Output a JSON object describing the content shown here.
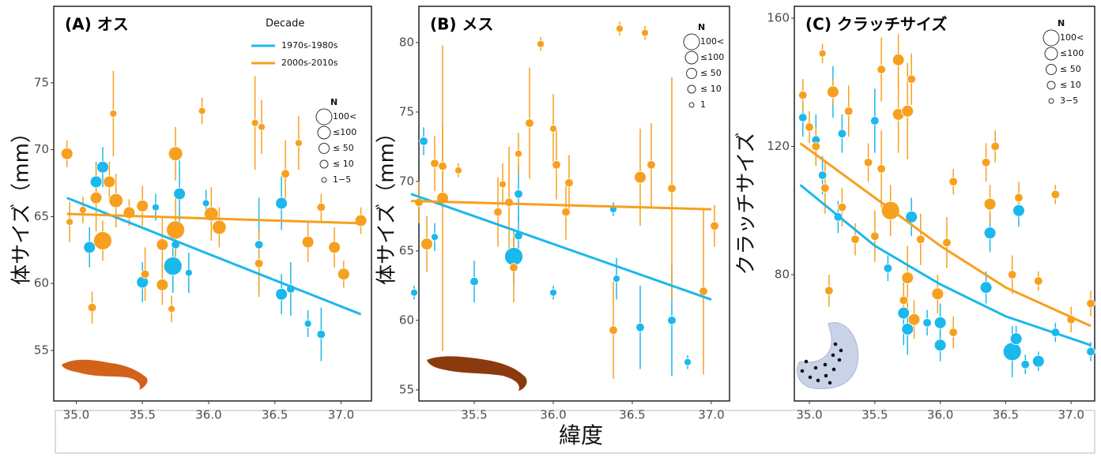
{
  "xlabel": "緯度",
  "chart_data": [
    {
      "type": "scatter",
      "title": "(A) オス",
      "ylabel": "体サイズ（mm）",
      "xlim": [
        34.83,
        37.23
      ],
      "ylim": [
        51.22,
        80.72
      ],
      "xticks": [
        {
          "value": 35,
          "label": "35.0"
        },
        35.5,
        {
          "value": 36,
          "label": "36.0"
        },
        36.5,
        {
          "value": 37,
          "label": "37.0"
        }
      ],
      "yticks": [
        55,
        60,
        65,
        70,
        75
      ],
      "legend": {
        "title": "Decade"
      },
      "size_legend": {
        "title": "N",
        "labels": [
          "100<",
          "≤100",
          "≤ 50",
          "≤ 10",
          "1−5"
        ]
      },
      "series": [
        {
          "name": "1970s-1980s",
          "color": "#1bb8ec",
          "x": [
            35.1,
            35.15,
            35.2,
            35.5,
            35.6,
            35.73,
            35.75,
            35.78,
            35.85,
            35.98,
            36.38,
            36.55,
            36.55,
            36.62,
            36.75,
            36.85
          ],
          "values": [
            62.7,
            67.6,
            68.7,
            60.1,
            65.7,
            61.3,
            62.9,
            66.7,
            60.8,
            66.0,
            62.9,
            66.0,
            59.2,
            59.6,
            57.0,
            56.2
          ],
          "errors": [
            1.5,
            1.5,
            1.5,
            1.5,
            1.0,
            2.0,
            2.0,
            2.5,
            1.5,
            1.0,
            3.5,
            2.0,
            1.5,
            2.0,
            1.0,
            2.0
          ],
          "n": [
            30,
            30,
            30,
            30,
            5,
            100,
            10,
            30,
            5,
            5,
            10,
            30,
            30,
            10,
            5,
            10
          ],
          "trend": {
            "x": [
              34.93,
              37.15
            ],
            "values": [
              66.4,
              57.7
            ]
          }
        },
        {
          "name": "2000s-2010s",
          "color": "#f7a01f",
          "x": [
            34.93,
            34.95,
            35.05,
            35.12,
            35.15,
            35.2,
            35.25,
            35.28,
            35.3,
            35.4,
            35.5,
            35.52,
            35.65,
            35.65,
            35.72,
            35.75,
            35.75,
            35.95,
            36.02,
            36.08,
            36.35,
            36.4,
            36.38,
            36.58,
            36.68,
            36.75,
            36.85,
            36.95,
            37.02,
            37.15
          ],
          "values": [
            69.7,
            64.6,
            65.5,
            58.2,
            66.4,
            63.2,
            67.6,
            72.7,
            66.2,
            65.3,
            65.8,
            60.7,
            62.9,
            59.9,
            58.1,
            69.7,
            64.0,
            72.9,
            65.2,
            64.2,
            72.0,
            71.7,
            61.5,
            68.2,
            70.5,
            63.1,
            65.7,
            62.7,
            60.7,
            64.7
          ],
          "errors": [
            1.0,
            1.5,
            1.0,
            1.2,
            2.5,
            1.5,
            1.5,
            3.2,
            2.0,
            1.0,
            1.5,
            2.0,
            2.0,
            1.5,
            1.0,
            2.0,
            2.5,
            1.0,
            2.0,
            1.5,
            3.5,
            2.0,
            2.5,
            2.5,
            2.0,
            1.5,
            1.0,
            1.5,
            1.0,
            1.0
          ],
          "n": [
            30,
            5,
            5,
            10,
            30,
            100,
            30,
            5,
            50,
            30,
            30,
            10,
            30,
            30,
            5,
            50,
            100,
            5,
            50,
            50,
            5,
            5,
            10,
            10,
            5,
            30,
            10,
            30,
            30,
            30
          ],
          "trend": {
            "x": [
              34.93,
              37.15
            ],
            "values": [
              65.2,
              64.5
            ]
          }
        }
      ]
    },
    {
      "type": "scatter",
      "title": "(B) メス",
      "ylabel": "体サイズ（mm）",
      "xlim": [
        35.15,
        37.115
      ],
      "ylim": [
        54.2,
        82.61
      ],
      "xticks": [
        35.5,
        {
          "value": 36,
          "label": "36.0"
        },
        36.5,
        {
          "value": 37,
          "label": "37.0"
        }
      ],
      "yticks": [
        55,
        60,
        65,
        70,
        75,
        80
      ],
      "size_legend": {
        "title": "N",
        "labels": [
          "100<",
          "≤100",
          "≤ 50",
          "≤ 10",
          "1"
        ]
      },
      "series": [
        {
          "color": "#1bb8ec",
          "x": [
            35.12,
            35.18,
            35.25,
            35.5,
            35.75,
            35.78,
            35.78,
            36.0,
            36.38,
            36.4,
            36.55,
            36.75,
            36.85
          ],
          "values": [
            62.0,
            72.9,
            66.0,
            62.8,
            64.6,
            69.1,
            66.1,
            62.0,
            68.0,
            63.0,
            59.5,
            60.0,
            57.0
          ],
          "errors": [
            0.5,
            1.0,
            1.0,
            1.5,
            2.0,
            2.0,
            1.5,
            0.5,
            0.5,
            1.5,
            3.0,
            4.0,
            0.5
          ],
          "n": [
            5,
            10,
            5,
            10,
            100,
            10,
            10,
            5,
            5,
            5,
            10,
            10,
            5
          ],
          "trend": {
            "x": [
              35.1,
              37.0
            ],
            "values": [
              69.1,
              61.5
            ]
          }
        },
        {
          "color": "#f7a01f",
          "x": [
            35.15,
            35.2,
            35.25,
            35.3,
            35.3,
            35.4,
            35.65,
            35.68,
            35.72,
            35.75,
            35.78,
            35.85,
            35.92,
            36.0,
            36.02,
            36.08,
            36.1,
            36.38,
            36.42,
            36.55,
            36.58,
            36.62,
            36.75,
            36.95,
            37.02
          ],
          "values": [
            68.5,
            65.5,
            71.3,
            68.8,
            71.1,
            70.8,
            67.8,
            69.8,
            68.5,
            63.8,
            72.0,
            74.2,
            79.9,
            73.8,
            71.2,
            67.8,
            69.9,
            59.3,
            81.0,
            70.3,
            80.7,
            71.2,
            69.5,
            62.1,
            66.8
          ],
          "errors": [
            1.5,
            2.0,
            2.0,
            11,
            3,
            0.5,
            2.5,
            1.5,
            4.0,
            2.5,
            1.5,
            4.0,
            0.5,
            2.5,
            2.5,
            2.0,
            2.0,
            3.5,
            0.5,
            3.5,
            0.5,
            3.0,
            8.0,
            6.0,
            1.5
          ],
          "n": [
            10,
            30,
            10,
            30,
            10,
            5,
            10,
            5,
            10,
            10,
            5,
            10,
            5,
            5,
            10,
            10,
            10,
            10,
            5,
            30,
            5,
            10,
            10,
            10,
            10
          ],
          "trend": {
            "x": [
              35.1,
              37.0
            ],
            "values": [
              68.6,
              68.0
            ]
          }
        }
      ]
    },
    {
      "type": "scatter",
      "title": "(C) クラッチサイズ",
      "ylabel": "クラッチサイズ",
      "xlim": [
        34.885,
        37.18
      ],
      "ylim": [
        40.6,
        163.7
      ],
      "xticks": [
        {
          "value": 35,
          "label": "35.0"
        },
        35.5,
        {
          "value": 36,
          "label": "36.0"
        },
        36.5,
        {
          "value": 37,
          "label": "37.0"
        }
      ],
      "yticks": [
        80,
        120,
        160
      ],
      "size_legend": {
        "title": "N",
        "labels": [
          "100<",
          "≤100",
          "≤ 50",
          "≤ 10",
          "3−5"
        ]
      },
      "series": [
        {
          "color": "#1bb8ec",
          "x": [
            34.95,
            35.05,
            35.1,
            35.18,
            35.22,
            35.25,
            35.5,
            35.6,
            35.72,
            35.75,
            35.78,
            35.9,
            36.0,
            36.0,
            36.35,
            36.38,
            36.55,
            36.6,
            36.58,
            36.65,
            36.75,
            36.88,
            37.15
          ],
          "values": [
            129,
            122,
            111,
            137,
            98,
            124,
            128,
            82,
            68,
            63,
            98,
            65,
            65,
            58,
            76,
            93,
            56,
            100,
            60,
            52,
            53,
            62,
            56
          ],
          "errors": [
            6,
            8,
            6,
            8,
            5,
            6,
            10,
            4,
            10,
            8,
            6,
            4,
            6,
            5,
            5,
            6,
            8,
            5,
            4,
            3,
            3,
            3,
            3
          ],
          "n": [
            10,
            10,
            10,
            30,
            10,
            10,
            10,
            10,
            30,
            30,
            30,
            10,
            30,
            30,
            30,
            30,
            100,
            30,
            30,
            10,
            30,
            10,
            10
          ],
          "trend": {
            "x": [
              34.93,
              35.5,
              36.0,
              36.5,
              37.15
            ],
            "values": [
              108,
              89,
              77,
              67,
              58
            ]
          }
        },
        {
          "color": "#f7a01f",
          "x": [
            34.95,
            35.0,
            35.05,
            35.1,
            35.12,
            35.15,
            35.18,
            35.25,
            35.3,
            35.35,
            35.45,
            35.5,
            35.55,
            35.55,
            35.62,
            35.68,
            35.68,
            35.72,
            35.75,
            35.75,
            35.78,
            35.8,
            35.85,
            35.98,
            36.05,
            36.1,
            36.1,
            36.35,
            36.38,
            36.42,
            36.55,
            36.6,
            36.75,
            36.88,
            37.0,
            37.15
          ],
          "values": [
            136,
            126,
            120,
            149,
            107,
            75,
            137,
            101,
            131,
            91,
            115,
            92,
            144,
            113,
            100,
            130,
            147,
            72,
            79,
            131,
            141,
            66,
            91,
            74,
            90,
            109,
            62,
            115,
            102,
            120,
            80,
            104,
            78,
            105,
            66,
            71
          ],
          "errors": [
            5,
            5,
            6,
            3,
            8,
            5,
            4,
            6,
            8,
            5,
            6,
            8,
            10,
            12,
            8,
            12,
            8,
            5,
            10,
            15,
            8,
            6,
            8,
            6,
            8,
            4,
            5,
            6,
            6,
            5,
            6,
            5,
            3,
            3,
            4,
            4
          ],
          "n": [
            10,
            10,
            10,
            5,
            10,
            10,
            30,
            10,
            10,
            10,
            10,
            10,
            10,
            10,
            100,
            30,
            30,
            10,
            30,
            30,
            10,
            30,
            10,
            30,
            10,
            10,
            10,
            10,
            30,
            10,
            10,
            10,
            10,
            10,
            10,
            10
          ],
          "trend": {
            "x": [
              34.93,
              35.5,
              36.0,
              36.5,
              37.15
            ],
            "values": [
              121,
              104,
              89,
              76,
              64
            ]
          }
        }
      ]
    }
  ]
}
